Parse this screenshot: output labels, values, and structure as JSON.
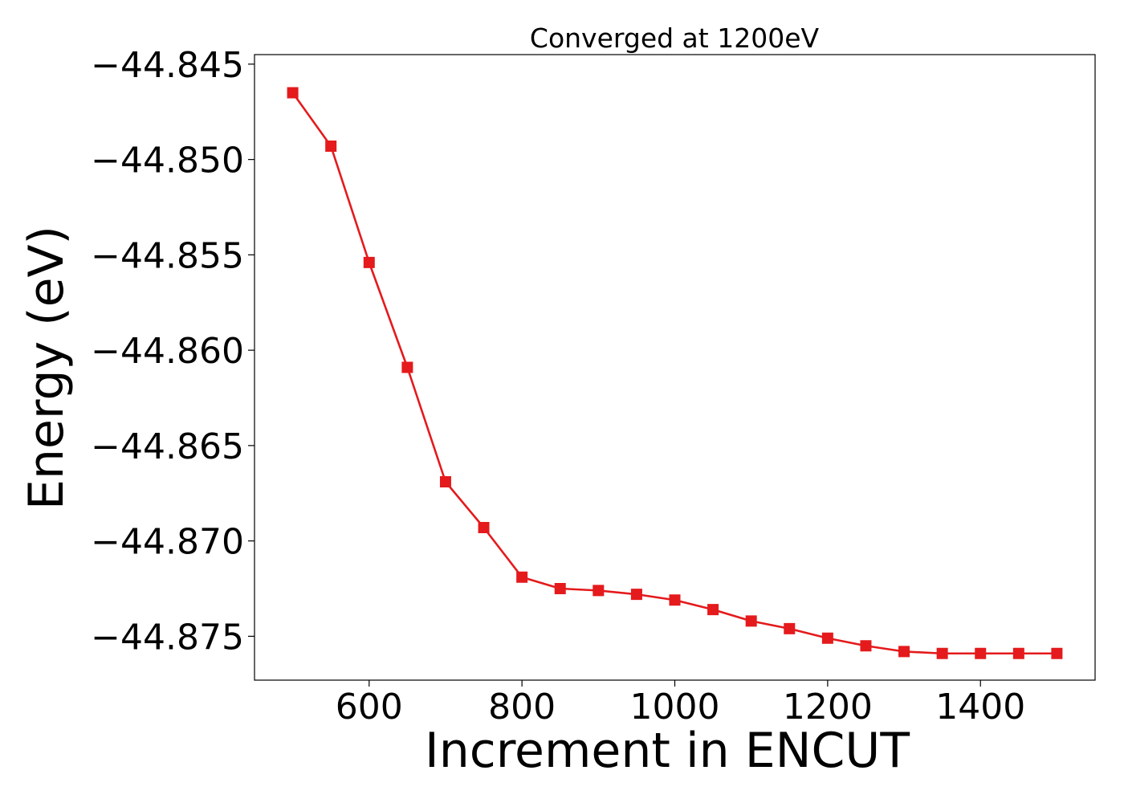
{
  "chart_data": {
    "type": "line",
    "title": "Converged at 1200eV",
    "xlabel": "Increment in ENCUT",
    "ylabel": "Energy (eV)",
    "xlim": [
      450,
      1550
    ],
    "ylim": [
      -44.8773,
      -44.8445
    ],
    "x_ticks": [
      600,
      800,
      1000,
      1200,
      1400
    ],
    "x_tick_labels": [
      "600",
      "800",
      "1000",
      "1200",
      "1400"
    ],
    "y_ticks": [
      -44.845,
      -44.85,
      -44.855,
      -44.86,
      -44.865,
      -44.87,
      -44.875
    ],
    "y_tick_labels": [
      "−44.845",
      "−44.850",
      "−44.855",
      "−44.860",
      "−44.865",
      "−44.870",
      "−44.875"
    ],
    "grid": false,
    "series": [
      {
        "color": "#e41a1c",
        "marker": "square",
        "x": [
          500,
          550,
          600,
          650,
          700,
          750,
          800,
          850,
          900,
          950,
          1000,
          1050,
          1100,
          1150,
          1200,
          1250,
          1300,
          1350,
          1400,
          1450,
          1500
        ],
        "y": [
          -44.8465,
          -44.8493,
          -44.8554,
          -44.8609,
          -44.8669,
          -44.8693,
          -44.8719,
          -44.8725,
          -44.8726,
          -44.8728,
          -44.8731,
          -44.8736,
          -44.8742,
          -44.8746,
          -44.8751,
          -44.8755,
          -44.8758,
          -44.8759,
          -44.8759,
          -44.8759,
          -44.8759
        ]
      }
    ]
  }
}
